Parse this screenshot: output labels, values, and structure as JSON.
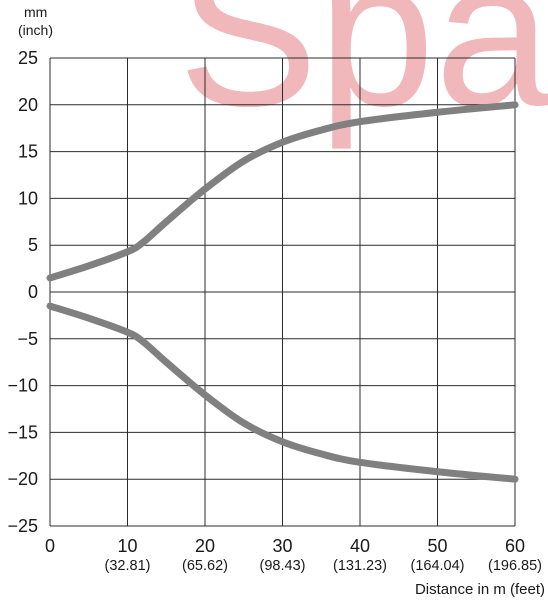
{
  "chart_data": {
    "type": "line",
    "title": "",
    "y_unit_label": "mm",
    "y_unit_sublabel": "(inch)",
    "xlabel": "Distance in m (feet)",
    "ylabel": "",
    "xlim": [
      0,
      60
    ],
    "ylim": [
      -25,
      25
    ],
    "grid": true,
    "x_ticks": [
      {
        "value": 0,
        "label": "0",
        "sublabel": ""
      },
      {
        "value": 10,
        "label": "10",
        "sublabel": "(32.81)"
      },
      {
        "value": 20,
        "label": "20",
        "sublabel": "(65.62)"
      },
      {
        "value": 30,
        "label": "30",
        "sublabel": "(98.43)"
      },
      {
        "value": 40,
        "label": "40",
        "sublabel": "(131.23)"
      },
      {
        "value": 50,
        "label": "50",
        "sublabel": "(164.04)"
      },
      {
        "value": 60,
        "label": "60",
        "sublabel": "(196.85)"
      }
    ],
    "y_ticks": [
      {
        "value": 25,
        "label": "25"
      },
      {
        "value": 20,
        "label": "20"
      },
      {
        "value": 15,
        "label": "15"
      },
      {
        "value": 10,
        "label": "10"
      },
      {
        "value": 5,
        "label": "5"
      },
      {
        "value": 0,
        "label": "0"
      },
      {
        "value": -5,
        "label": "−5"
      },
      {
        "value": -10,
        "label": "−10"
      },
      {
        "value": -15,
        "label": "−15"
      },
      {
        "value": -20,
        "label": "−20"
      },
      {
        "value": -25,
        "label": "−25"
      }
    ],
    "series": [
      {
        "color": "#808080",
        "points": [
          [
            0,
            1.5
          ],
          [
            5,
            2.8
          ],
          [
            10,
            4.3
          ],
          [
            12,
            5.3
          ],
          [
            15,
            7.5
          ],
          [
            20,
            11
          ],
          [
            25,
            14
          ],
          [
            30,
            16
          ],
          [
            35,
            17.3
          ],
          [
            40,
            18.2
          ],
          [
            50,
            19.2
          ],
          [
            60,
            20
          ]
        ]
      },
      {
        "color": "#808080",
        "points": [
          [
            0,
            -1.5
          ],
          [
            5,
            -2.8
          ],
          [
            10,
            -4.3
          ],
          [
            12,
            -5.3
          ],
          [
            15,
            -7.5
          ],
          [
            20,
            -11
          ],
          [
            25,
            -14
          ],
          [
            30,
            -16
          ],
          [
            35,
            -17.3
          ],
          [
            40,
            -18.2
          ],
          [
            50,
            -19.2
          ],
          [
            60,
            -20
          ]
        ]
      }
    ],
    "watermark": {
      "text": "Spa",
      "color": "#f0b8ba"
    }
  }
}
